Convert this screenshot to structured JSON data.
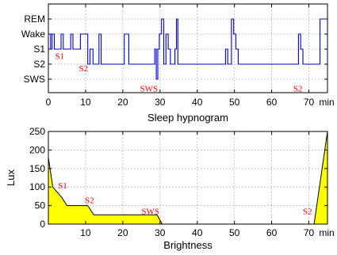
{
  "chart_data": [
    {
      "type": "line",
      "xlabel": "Sleep hypnogram",
      "ylabel": "",
      "xlim": [
        0,
        75
      ],
      "x_ticks": [
        "0",
        "10",
        "20",
        "30",
        "40",
        "50",
        "60",
        "70"
      ],
      "x_unit_label": "min",
      "y_categories": [
        "SWS",
        "S2",
        "S1",
        "Wake",
        "REM"
      ],
      "grid": true,
      "series": [
        {
          "color": "#0000cc",
          "points": [
            [
              0,
              3
            ],
            [
              0.6,
              3
            ],
            [
              0.6,
              2
            ],
            [
              1,
              2
            ],
            [
              1,
              3
            ],
            [
              1.6,
              3
            ],
            [
              1.6,
              2
            ],
            [
              3.4,
              2
            ],
            [
              3.4,
              3
            ],
            [
              4,
              3
            ],
            [
              4,
              2
            ],
            [
              6,
              2
            ],
            [
              6,
              3
            ],
            [
              6.6,
              3
            ],
            [
              6.6,
              2
            ],
            [
              8.6,
              2
            ],
            [
              8.6,
              3
            ],
            [
              10.6,
              3
            ],
            [
              10.6,
              1
            ],
            [
              11.2,
              1
            ],
            [
              11.2,
              2
            ],
            [
              12,
              2
            ],
            [
              12,
              1
            ],
            [
              13.6,
              1
            ],
            [
              13.6,
              3
            ],
            [
              14.2,
              3
            ],
            [
              14.2,
              1
            ],
            [
              20.4,
              1
            ],
            [
              20.4,
              3
            ],
            [
              21.6,
              3
            ],
            [
              21.6,
              1
            ],
            [
              28.6,
              1
            ],
            [
              28.6,
              2
            ],
            [
              29,
              2
            ],
            [
              29,
              0
            ],
            [
              29.4,
              0
            ],
            [
              29.4,
              2
            ],
            [
              29.8,
              2
            ],
            [
              29.8,
              3
            ],
            [
              30.4,
              3
            ],
            [
              30.4,
              4
            ],
            [
              31,
              4
            ],
            [
              31,
              1
            ],
            [
              31.6,
              1
            ],
            [
              31.6,
              3
            ],
            [
              32.2,
              3
            ],
            [
              32.2,
              2
            ],
            [
              32.8,
              2
            ],
            [
              32.8,
              1
            ],
            [
              34,
              1
            ],
            [
              34,
              2
            ],
            [
              34.4,
              2
            ],
            [
              34.4,
              4
            ],
            [
              34.8,
              4
            ],
            [
              34.8,
              1
            ],
            [
              47.6,
              1
            ],
            [
              47.6,
              2
            ],
            [
              48.2,
              2
            ],
            [
              48.2,
              1
            ],
            [
              49.2,
              1
            ],
            [
              49.2,
              4
            ],
            [
              49.8,
              4
            ],
            [
              49.8,
              3
            ],
            [
              50.4,
              3
            ],
            [
              50.4,
              2
            ],
            [
              51,
              2
            ],
            [
              51,
              1
            ],
            [
              67.2,
              1
            ],
            [
              67.2,
              3
            ],
            [
              67.8,
              3
            ],
            [
              67.8,
              2
            ],
            [
              68.4,
              2
            ],
            [
              68.4,
              1
            ],
            [
              73,
              1
            ],
            [
              73,
              4
            ],
            [
              75,
              4
            ]
          ]
        }
      ],
      "annotations": [
        {
          "text": "S1",
          "x": 1.8,
          "y": 1.55
        },
        {
          "text": "S2",
          "x": 8.2,
          "y": 0.75
        },
        {
          "text": "SWS",
          "x": 24.6,
          "y": -0.6
        },
        {
          "text": "S2",
          "x": 65.8,
          "y": -0.6
        }
      ]
    },
    {
      "type": "area",
      "xlabel": "Brightness",
      "ylabel": "Lux",
      "xlim": [
        0,
        75
      ],
      "ylim": [
        0,
        250
      ],
      "x_ticks": [
        "10",
        "20",
        "30",
        "40",
        "50",
        "60",
        "70"
      ],
      "x_unit_label": "min",
      "y_ticks": [
        "0",
        "50",
        "100",
        "150",
        "200",
        "250"
      ],
      "grid": true,
      "fill_color": "#ffff00",
      "points": [
        [
          0,
          180
        ],
        [
          1.2,
          100
        ],
        [
          3.6,
          72
        ],
        [
          5,
          50
        ],
        [
          10.6,
          50
        ],
        [
          12.2,
          25
        ],
        [
          29.2,
          25
        ],
        [
          30.6,
          0
        ],
        [
          71.4,
          0
        ],
        [
          75,
          250
        ]
      ],
      "annotations": [
        {
          "text": "S1",
          "x": 2.6,
          "y": 105
        },
        {
          "text": "S2",
          "x": 9.8,
          "y": 65
        },
        {
          "text": "SWS",
          "x": 25,
          "y": 35
        },
        {
          "text": "S2",
          "x": 68.4,
          "y": 35
        }
      ]
    }
  ]
}
